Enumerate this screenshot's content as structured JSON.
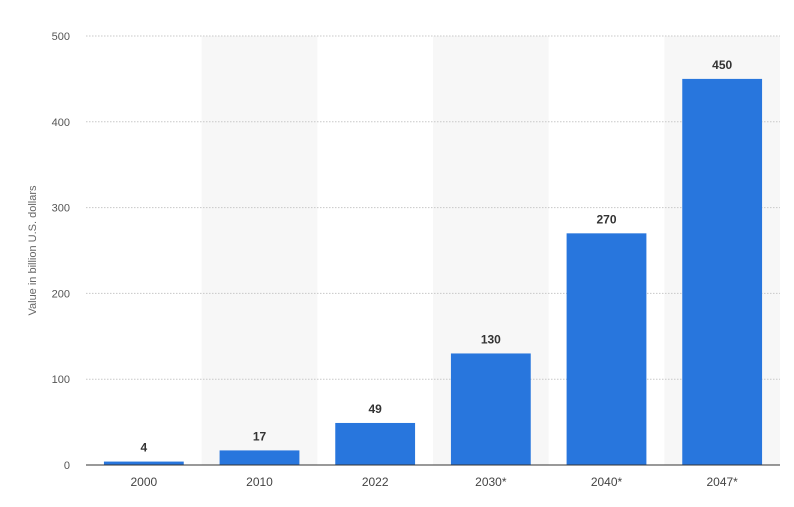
{
  "chart_data": {
    "type": "bar",
    "categories": [
      "2000",
      "2010",
      "2022",
      "2030*",
      "2040*",
      "2047*"
    ],
    "values": [
      4,
      17,
      49,
      130,
      270,
      450
    ],
    "data_labels": [
      "4",
      "17",
      "49",
      "130",
      "270",
      "450"
    ],
    "title": "",
    "xlabel": "",
    "ylabel": "Value in billion U.S. dollars",
    "ylim": [
      0,
      500
    ],
    "yticks": [
      0,
      100,
      200,
      300,
      400,
      500
    ],
    "ytick_labels": [
      "0",
      "100",
      "200",
      "300",
      "400",
      "500"
    ],
    "grid": true,
    "legend": "none",
    "colors": {
      "bar": "#2876dd",
      "band": "#f7f7f7",
      "grid": "#c8c8c8",
      "baseline": "#333333"
    }
  }
}
